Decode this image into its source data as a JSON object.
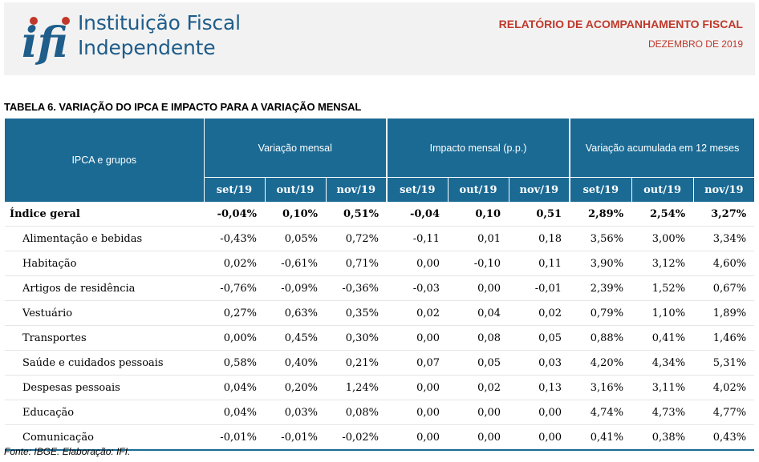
{
  "header": {
    "logo_text_line1": "Instituição Fiscal",
    "logo_text_line2": "Independente",
    "report_title": "RELATÓRIO DE ACOMPANHAMENTO FISCAL",
    "report_date": "DEZEMBRO DE 2019",
    "logo_letters": "ifi"
  },
  "table": {
    "title": "TABELA 6. VARIAÇÃO DO IPCA E IMPACTO PARA A VARIAÇÃO MENSAL",
    "first_header": "IPCA e grupos",
    "groups": [
      "Variação mensal",
      "Impacto mensal (p.p.)",
      "Variação acumulada em 12 meses"
    ],
    "months": [
      "set/19",
      "out/19",
      "nov/19",
      "set/19",
      "out/19",
      "nov/19",
      "set/19",
      "out/19",
      "nov/19"
    ],
    "rows": [
      {
        "label": "Índice geral",
        "values": [
          "-0,04%",
          "0,10%",
          "0,51%",
          "-0,04",
          "0,10",
          "0,51",
          "2,89%",
          "2,54%",
          "3,27%"
        ]
      },
      {
        "label": "Alimentação e bebidas",
        "values": [
          "-0,43%",
          "0,05%",
          "0,72%",
          "-0,11",
          "0,01",
          "0,18",
          "3,56%",
          "3,00%",
          "3,34%"
        ]
      },
      {
        "label": "Habitação",
        "values": [
          "0,02%",
          "-0,61%",
          "0,71%",
          "0,00",
          "-0,10",
          "0,11",
          "3,90%",
          "3,12%",
          "4,60%"
        ]
      },
      {
        "label": "Artigos de residência",
        "values": [
          "-0,76%",
          "-0,09%",
          "-0,36%",
          "-0,03",
          "0,00",
          "-0,01",
          "2,39%",
          "1,52%",
          "0,67%"
        ]
      },
      {
        "label": "Vestuário",
        "values": [
          "0,27%",
          "0,63%",
          "0,35%",
          "0,02",
          "0,04",
          "0,02",
          "0,79%",
          "1,10%",
          "1,89%"
        ]
      },
      {
        "label": "Transportes",
        "values": [
          "0,00%",
          "0,45%",
          "0,30%",
          "0,00",
          "0,08",
          "0,05",
          "0,88%",
          "0,41%",
          "1,46%"
        ]
      },
      {
        "label": "Saúde e cuidados pessoais",
        "values": [
          "0,58%",
          "0,40%",
          "0,21%",
          "0,07",
          "0,05",
          "0,03",
          "4,20%",
          "4,34%",
          "5,31%"
        ]
      },
      {
        "label": "Despesas pessoais",
        "values": [
          "0,04%",
          "0,20%",
          "1,24%",
          "0,00",
          "0,02",
          "0,13",
          "3,16%",
          "3,11%",
          "4,02%"
        ]
      },
      {
        "label": "Educação",
        "values": [
          "0,04%",
          "0,03%",
          "0,08%",
          "0,00",
          "0,00",
          "0,00",
          "4,74%",
          "4,73%",
          "4,77%"
        ]
      },
      {
        "label": "Comunicação",
        "values": [
          "-0,01%",
          "-0,01%",
          "-0,02%",
          "0,00",
          "0,00",
          "0,00",
          "0,41%",
          "0,38%",
          "0,43%"
        ]
      }
    ]
  },
  "source": "Fonte: IBGE. Elaboração: IFI.",
  "colors": {
    "brand_blue": "#1f5d8a",
    "header_fill": "#1a6a94",
    "accent_red": "#c0392b"
  }
}
